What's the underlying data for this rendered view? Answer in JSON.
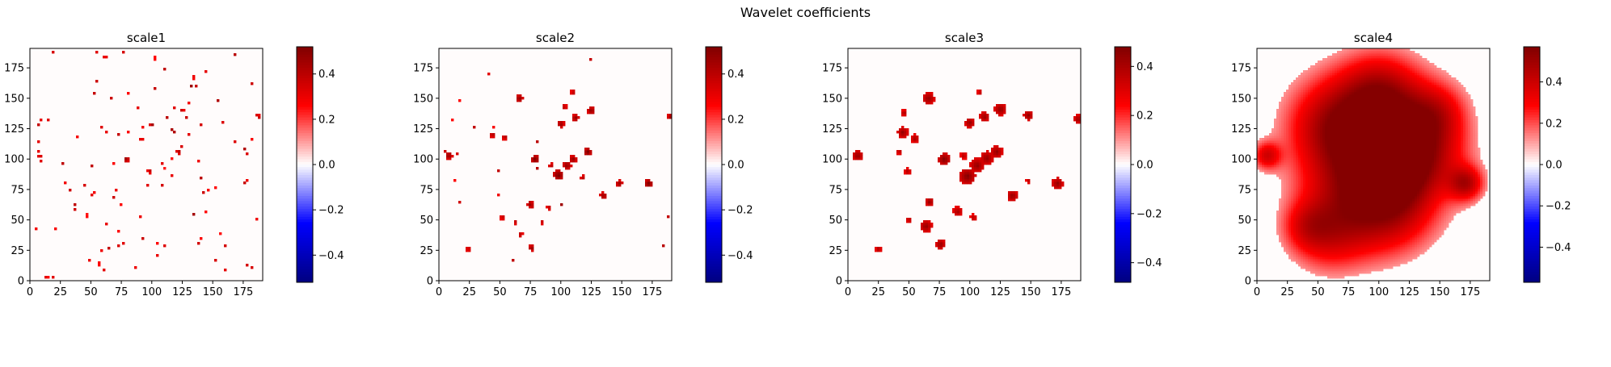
{
  "figure": {
    "title": "Wavelet coefficients"
  },
  "chart_data": [
    {
      "type": "heatmap",
      "title": "scale1",
      "xlim": [
        0,
        191
      ],
      "ylim": [
        0,
        191
      ],
      "xticks": [
        0,
        25,
        50,
        75,
        100,
        125,
        150,
        175
      ],
      "yticks": [
        0,
        25,
        50,
        75,
        100,
        125,
        150,
        175
      ],
      "colormap": "seismic",
      "colorbar": {
        "vmin": -0.52,
        "vmax": 0.52,
        "ticks": [
          -0.4,
          -0.2,
          0.0,
          0.2,
          0.4
        ]
      },
      "blobs": [
        {
          "x": 79,
          "y": 100,
          "r": 2.2,
          "v": 0.5
        },
        {
          "x": 122,
          "y": 106,
          "r": 2.0,
          "v": 0.45
        },
        {
          "x": 98,
          "y": 90,
          "r": 1.6,
          "v": 0.45
        },
        {
          "x": 100,
          "y": 128,
          "r": 1.6,
          "v": 0.5
        },
        {
          "x": 112,
          "y": 134,
          "r": 1.6,
          "v": 0.45
        },
        {
          "x": 125,
          "y": 140,
          "r": 1.4,
          "v": 0.45
        },
        {
          "x": 66,
          "y": 150,
          "r": 1.3,
          "v": 0.45
        },
        {
          "x": 8,
          "y": 103,
          "r": 1.4,
          "v": 0.45
        },
        {
          "x": 188,
          "y": 135,
          "r": 1.4,
          "v": 0.45
        },
        {
          "x": 176,
          "y": 80,
          "r": 1.2,
          "v": 0.45
        },
        {
          "x": 142,
          "y": 72,
          "r": 1.2,
          "v": 0.45
        },
        {
          "x": 52,
          "y": 72,
          "r": 1.0,
          "v": 0.4
        },
        {
          "x": 108,
          "y": 96,
          "r": 1.0,
          "v": 0.4
        },
        {
          "x": 62,
          "y": 122,
          "r": 1.0,
          "v": 0.4
        },
        {
          "x": 140,
          "y": 128,
          "r": 1.0,
          "v": 0.4
        }
      ],
      "dots": 110,
      "seed": 11,
      "dot_r": 0.7
    },
    {
      "type": "heatmap",
      "title": "scale2",
      "xlim": [
        0,
        191
      ],
      "ylim": [
        0,
        191
      ],
      "xticks": [
        0,
        25,
        50,
        75,
        100,
        125,
        150,
        175
      ],
      "yticks": [
        0,
        25,
        50,
        75,
        100,
        125,
        150,
        175
      ],
      "colormap": "seismic",
      "colorbar": {
        "vmin": -0.52,
        "vmax": 0.52,
        "ticks": [
          -0.4,
          -0.2,
          0.0,
          0.2,
          0.4
        ]
      },
      "blobs": [
        {
          "x": 8,
          "y": 103,
          "r": 3.0,
          "v": 0.5
        },
        {
          "x": 66,
          "y": 150,
          "r": 3.0,
          "v": 0.5
        },
        {
          "x": 79,
          "y": 100,
          "r": 3.2,
          "v": 0.55
        },
        {
          "x": 98,
          "y": 87,
          "r": 4.0,
          "v": 0.55
        },
        {
          "x": 105,
          "y": 95,
          "r": 3.5,
          "v": 0.5
        },
        {
          "x": 110,
          "y": 100,
          "r": 3.0,
          "v": 0.5
        },
        {
          "x": 122,
          "y": 106,
          "r": 3.0,
          "v": 0.55
        },
        {
          "x": 100,
          "y": 129,
          "r": 2.8,
          "v": 0.5
        },
        {
          "x": 112,
          "y": 134,
          "r": 2.8,
          "v": 0.5
        },
        {
          "x": 125,
          "y": 140,
          "r": 3.2,
          "v": 0.5
        },
        {
          "x": 103,
          "y": 143,
          "r": 2.2,
          "v": 0.45
        },
        {
          "x": 110,
          "y": 155,
          "r": 2.0,
          "v": 0.45
        },
        {
          "x": 54,
          "y": 118,
          "r": 2.2,
          "v": 0.45
        },
        {
          "x": 44,
          "y": 120,
          "r": 2.4,
          "v": 0.45
        },
        {
          "x": 148,
          "y": 80,
          "r": 2.6,
          "v": 0.5
        },
        {
          "x": 172,
          "y": 80,
          "r": 3.2,
          "v": 0.55
        },
        {
          "x": 135,
          "y": 70,
          "r": 2.8,
          "v": 0.5
        },
        {
          "x": 75,
          "y": 63,
          "r": 2.6,
          "v": 0.5
        },
        {
          "x": 76,
          "y": 27,
          "r": 2.4,
          "v": 0.5
        },
        {
          "x": 67,
          "y": 38,
          "r": 2.0,
          "v": 0.45
        },
        {
          "x": 52,
          "y": 52,
          "r": 1.8,
          "v": 0.45
        },
        {
          "x": 24,
          "y": 26,
          "r": 1.8,
          "v": 0.45
        },
        {
          "x": 190,
          "y": 135,
          "r": 2.4,
          "v": 0.5
        },
        {
          "x": 118,
          "y": 85,
          "r": 2.0,
          "v": 0.45
        },
        {
          "x": 90,
          "y": 60,
          "r": 1.8,
          "v": 0.45
        },
        {
          "x": 85,
          "y": 48,
          "r": 1.6,
          "v": 0.45
        },
        {
          "x": 63,
          "y": 48,
          "r": 1.6,
          "v": 0.45
        },
        {
          "x": 92,
          "y": 95,
          "r": 2.0,
          "v": 0.45
        },
        {
          "x": 49,
          "y": 90,
          "r": 1.4,
          "v": 0.45
        }
      ],
      "dots": 22,
      "seed": 23,
      "dot_r": 0.9
    },
    {
      "type": "heatmap",
      "title": "scale3",
      "xlim": [
        0,
        191
      ],
      "ylim": [
        0,
        191
      ],
      "xticks": [
        0,
        25,
        50,
        75,
        100,
        125,
        150,
        175
      ],
      "yticks": [
        0,
        25,
        50,
        75,
        100,
        125,
        150,
        175
      ],
      "colormap": "seismic",
      "colorbar": {
        "vmin": -0.48,
        "vmax": 0.48,
        "ticks": [
          -0.4,
          -0.2,
          0.0,
          0.2,
          0.4
        ]
      },
      "blobs": [
        {
          "x": 8,
          "y": 103,
          "r": 4.5,
          "v": 0.45
        },
        {
          "x": 66,
          "y": 150,
          "r": 5.0,
          "v": 0.45
        },
        {
          "x": 79,
          "y": 100,
          "r": 5.0,
          "v": 0.48
        },
        {
          "x": 98,
          "y": 86,
          "r": 6.5,
          "v": 0.48
        },
        {
          "x": 106,
          "y": 95,
          "r": 6.0,
          "v": 0.45
        },
        {
          "x": 114,
          "y": 101,
          "r": 5.5,
          "v": 0.45
        },
        {
          "x": 122,
          "y": 106,
          "r": 5.0,
          "v": 0.45
        },
        {
          "x": 100,
          "y": 130,
          "r": 4.0,
          "v": 0.45
        },
        {
          "x": 112,
          "y": 135,
          "r": 4.0,
          "v": 0.45
        },
        {
          "x": 125,
          "y": 141,
          "r": 5.0,
          "v": 0.45
        },
        {
          "x": 45,
          "y": 122,
          "r": 4.5,
          "v": 0.45
        },
        {
          "x": 55,
          "y": 117,
          "r": 3.5,
          "v": 0.42
        },
        {
          "x": 148,
          "y": 136,
          "r": 4.0,
          "v": 0.45
        },
        {
          "x": 172,
          "y": 80,
          "r": 4.8,
          "v": 0.45
        },
        {
          "x": 135,
          "y": 70,
          "r": 4.5,
          "v": 0.45
        },
        {
          "x": 67,
          "y": 65,
          "r": 3.5,
          "v": 0.45
        },
        {
          "x": 64,
          "y": 45,
          "r": 5.0,
          "v": 0.45
        },
        {
          "x": 76,
          "y": 30,
          "r": 4.0,
          "v": 0.45
        },
        {
          "x": 90,
          "y": 57,
          "r": 4.0,
          "v": 0.42
        },
        {
          "x": 49,
          "y": 90,
          "r": 3.0,
          "v": 0.4
        },
        {
          "x": 50,
          "y": 50,
          "r": 2.5,
          "v": 0.4
        },
        {
          "x": 103,
          "y": 52,
          "r": 2.8,
          "v": 0.4
        },
        {
          "x": 189,
          "y": 133,
          "r": 3.5,
          "v": 0.45
        },
        {
          "x": 25,
          "y": 26,
          "r": 2.5,
          "v": 0.42
        },
        {
          "x": 46,
          "y": 138,
          "r": 2.6,
          "v": 0.42
        },
        {
          "x": 95,
          "y": 103,
          "r": 3.0,
          "v": 0.4
        },
        {
          "x": 148,
          "y": 82,
          "r": 2.0,
          "v": 0.4
        },
        {
          "x": 108,
          "y": 155,
          "r": 2.2,
          "v": 0.4
        },
        {
          "x": 42,
          "y": 106,
          "r": 2.4,
          "v": 0.4
        }
      ],
      "dots": 0,
      "seed": 37,
      "dot_r": 1.0
    },
    {
      "type": "heatmap",
      "title": "scale4",
      "xlim": [
        0,
        191
      ],
      "ylim": [
        0,
        191
      ],
      "xticks": [
        0,
        25,
        50,
        75,
        100,
        125,
        150,
        175
      ],
      "yticks": [
        0,
        25,
        50,
        75,
        100,
        125,
        150,
        175
      ],
      "colormap": "seismic",
      "colorbar": {
        "vmin": -0.57,
        "vmax": 0.57,
        "ticks": [
          -0.4,
          -0.2,
          0.0,
          0.2,
          0.4
        ]
      },
      "blobs": [
        {
          "x": 100,
          "y": 92,
          "r": 40,
          "v": 0.28
        },
        {
          "x": 82,
          "y": 125,
          "r": 38,
          "v": 0.25
        },
        {
          "x": 120,
          "y": 130,
          "r": 32,
          "v": 0.22
        },
        {
          "x": 75,
          "y": 55,
          "r": 30,
          "v": 0.22
        },
        {
          "x": 115,
          "y": 55,
          "r": 25,
          "v": 0.2
        },
        {
          "x": 55,
          "y": 35,
          "r": 22,
          "v": 0.18
        },
        {
          "x": 140,
          "y": 105,
          "r": 25,
          "v": 0.2
        },
        {
          "x": 58,
          "y": 130,
          "r": 26,
          "v": 0.2
        },
        {
          "x": 100,
          "y": 160,
          "r": 22,
          "v": 0.2
        },
        {
          "x": 40,
          "y": 45,
          "r": 14,
          "v": 0.16
        },
        {
          "x": 150,
          "y": 140,
          "r": 16,
          "v": 0.16
        },
        {
          "x": 108,
          "y": 90,
          "r": 18,
          "v": 0.2
        },
        {
          "x": 8,
          "y": 103,
          "r": 8,
          "v": 0.32
        },
        {
          "x": 172,
          "y": 80,
          "r": 10,
          "v": 0.35
        }
      ],
      "threshold": 0.12,
      "dots": 0,
      "seed": 41,
      "dot_r": 1.0
    }
  ]
}
